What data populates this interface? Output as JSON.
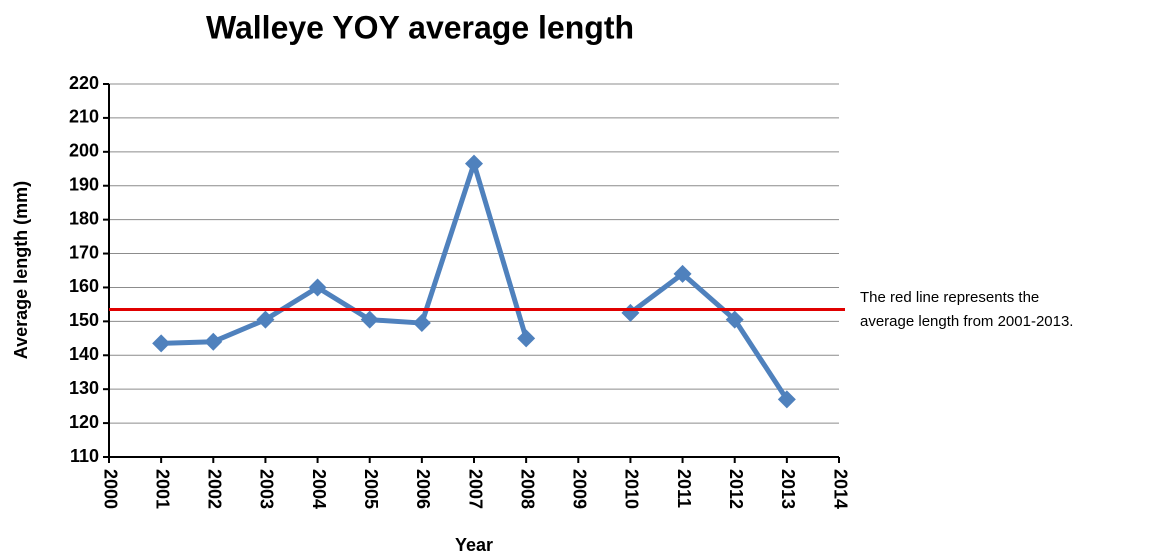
{
  "chart_data": {
    "type": "line",
    "title": "Walleye YOY average length",
    "xlabel": "Year",
    "ylabel": "Average length (mm)",
    "x": [
      2001,
      2002,
      2003,
      2004,
      2005,
      2006,
      2007,
      2008,
      2009,
      2010,
      2011,
      2012,
      2013
    ],
    "series": [
      {
        "name": "Average length",
        "color": "#4f81bd",
        "values": [
          143.5,
          144,
          150.5,
          160,
          150.5,
          149.5,
          196.5,
          145,
          null,
          152.5,
          164,
          150.5,
          127
        ]
      }
    ],
    "xlim": [
      2000,
      2014
    ],
    "xticks": [
      2000,
      2001,
      2002,
      2003,
      2004,
      2005,
      2006,
      2007,
      2008,
      2009,
      2010,
      2011,
      2012,
      2013,
      2014
    ],
    "ylim": [
      110,
      220
    ],
    "yticks": [
      110,
      120,
      130,
      140,
      150,
      160,
      170,
      180,
      190,
      200,
      210,
      220
    ],
    "grid": true,
    "reference_line": {
      "value": 153.5,
      "color": "#e00000"
    },
    "annotation": [
      "The red line represents the",
      "average length from 2001-2013."
    ]
  }
}
